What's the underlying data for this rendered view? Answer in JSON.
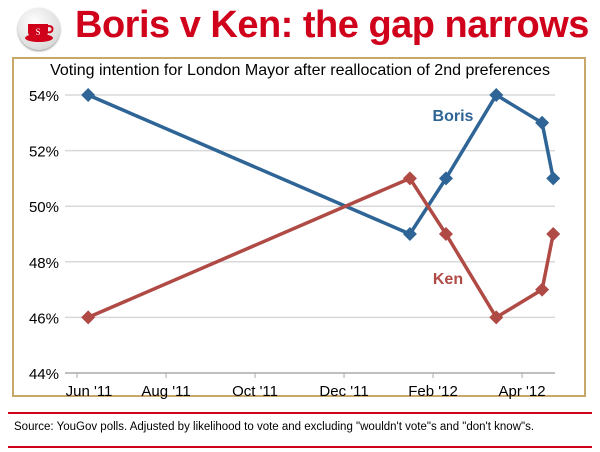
{
  "header": {
    "title": "Boris v Ken: the gap narrows",
    "logo_letter": "S"
  },
  "footer": {
    "source": "Source: YouGov polls. Adjusted by likelihood to vote and excluding \"wouldn't vote\"s and \"don't know\"s."
  },
  "colors": {
    "title": "#d0021b",
    "boris": "#2e6596",
    "ken": "#b04a45"
  },
  "chart_data": {
    "type": "line",
    "title": "Voting intention for London Mayor after reallocation of 2nd preferences",
    "xlabel": "",
    "ylabel": "",
    "x_unit": "months since Jun 2011",
    "xlim": [
      -0.27,
      10.74
    ],
    "ylim": [
      44,
      54
    ],
    "yticks": [
      44,
      46,
      48,
      50,
      52,
      54
    ],
    "ytick_labels": [
      "44%",
      "46%",
      "48%",
      "50%",
      "52%",
      "54%"
    ],
    "xticks": [
      0,
      2,
      4,
      6,
      8,
      10
    ],
    "xtick_labels": [
      "Jun '11",
      "Aug '11",
      "Oct '11",
      "Dec '11",
      "Feb '12",
      "Apr '12"
    ],
    "grid": true,
    "series": [
      {
        "name": "Boris",
        "color": "#2e6596",
        "x": [
          0.25,
          7.48,
          8.29,
          9.42,
          10.45,
          10.7
        ],
        "values": [
          54,
          49,
          51,
          54,
          53,
          51
        ]
      },
      {
        "name": "Ken",
        "color": "#b04a45",
        "x": [
          0.25,
          7.48,
          8.29,
          9.42,
          10.45,
          10.7
        ],
        "values": [
          46,
          51,
          49,
          46,
          47,
          49
        ]
      }
    ]
  }
}
